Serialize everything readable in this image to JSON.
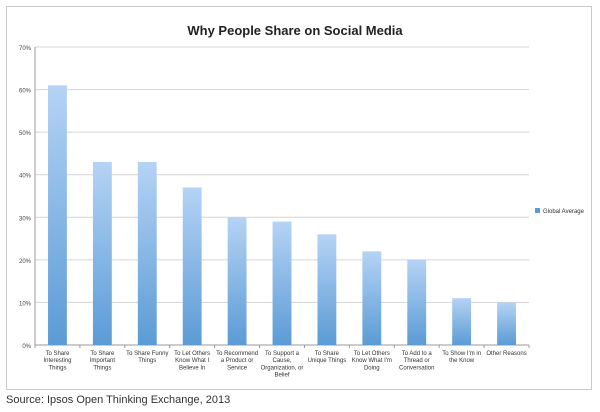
{
  "source": "Source: Ipsos Open Thinking Exchange, 2013",
  "chart_data": {
    "type": "bar",
    "title": "Why People Share on Social Media",
    "xlabel": "",
    "ylabel": "",
    "ylim": [
      0,
      70
    ],
    "yticks": [
      "0%",
      "10%",
      "20%",
      "30%",
      "40%",
      "50%",
      "60%",
      "70%"
    ],
    "grid": true,
    "legend_position": "right",
    "bar_color": "#5b9bd5",
    "bar_color_light": "#b5d3f5",
    "categories": [
      [
        "To Share",
        "Interesting",
        "Things"
      ],
      [
        "To Share",
        "Important",
        "Things"
      ],
      [
        "To Share Funny",
        "Things"
      ],
      [
        "To Let Others",
        "Know What I",
        "Believe In"
      ],
      [
        "To Recommend",
        "a Product or",
        "Service"
      ],
      [
        "To Support a",
        "Cause,",
        "Organization, or",
        "Belief"
      ],
      [
        "To Share",
        "Unique Things"
      ],
      [
        "To Let Others",
        "Know What I'm",
        "Doing"
      ],
      [
        "To Add to a",
        "Thread or",
        "Conversation"
      ],
      [
        "To Show I'm in",
        "the Know"
      ],
      [
        "Other Reasons"
      ]
    ],
    "series": [
      {
        "name": "Global Average",
        "values": [
          61,
          43,
          43,
          37,
          30,
          29,
          26,
          22,
          20,
          11,
          10
        ]
      }
    ]
  }
}
